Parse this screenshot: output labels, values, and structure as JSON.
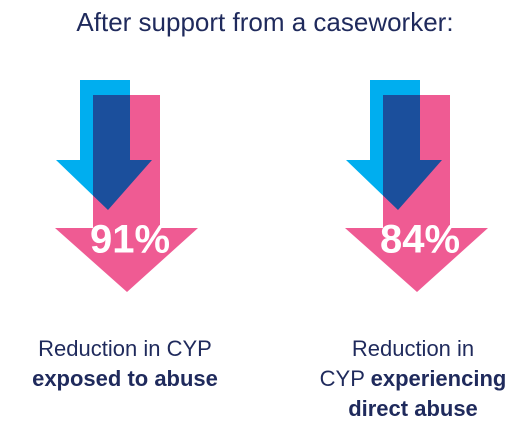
{
  "title": "After support from a caseworker:",
  "items": [
    {
      "value_label": "91%",
      "lines": [
        [
          {
            "text": "Reduction in CYP",
            "bold": false
          }
        ],
        [
          {
            "text": "exposed to abuse",
            "bold": true
          }
        ]
      ]
    },
    {
      "value_label": "84%",
      "lines": [
        [
          {
            "text": "Reduction in",
            "bold": false
          }
        ],
        [
          {
            "text": "CYP ",
            "bold": false
          },
          {
            "text": "experiencing",
            "bold": true
          }
        ],
        [
          {
            "text": "direct abuse",
            "bold": true
          }
        ]
      ]
    }
  ]
}
